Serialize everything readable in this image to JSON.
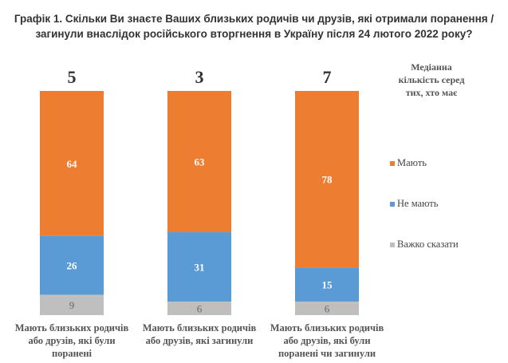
{
  "chart_data": {
    "type": "bar",
    "stacked": true,
    "title": "Графік 1. Скільки Ви знаєте Ваших близьких родичів чи друзів, які отримали поранення / загинули внаслідок російського вторгнення в Україну після 24 лютого 2022 року?",
    "categories": [
      [
        "Мають близьких родичів",
        "або друзів, які були",
        "поранені"
      ],
      [
        "Мають близьких родичів",
        "або друзів, які загинули"
      ],
      [
        "Мають близьких родичів",
        "або друзів, які були",
        "поранені чи загинули"
      ]
    ],
    "medians": [
      "5",
      "3",
      "7"
    ],
    "median_label": [
      "Медіанна",
      "кількість серед",
      "тих, хто має"
    ],
    "series": [
      {
        "name": "Мають",
        "values": [
          64,
          63,
          78
        ],
        "color": "#ED7D31"
      },
      {
        "name": "Не мають",
        "values": [
          26,
          31,
          15
        ],
        "color": "#5B9BD5"
      },
      {
        "name": "Важко сказати",
        "values": [
          9,
          6,
          6
        ],
        "color": "#BFBFBF"
      }
    ],
    "legend": "right"
  }
}
